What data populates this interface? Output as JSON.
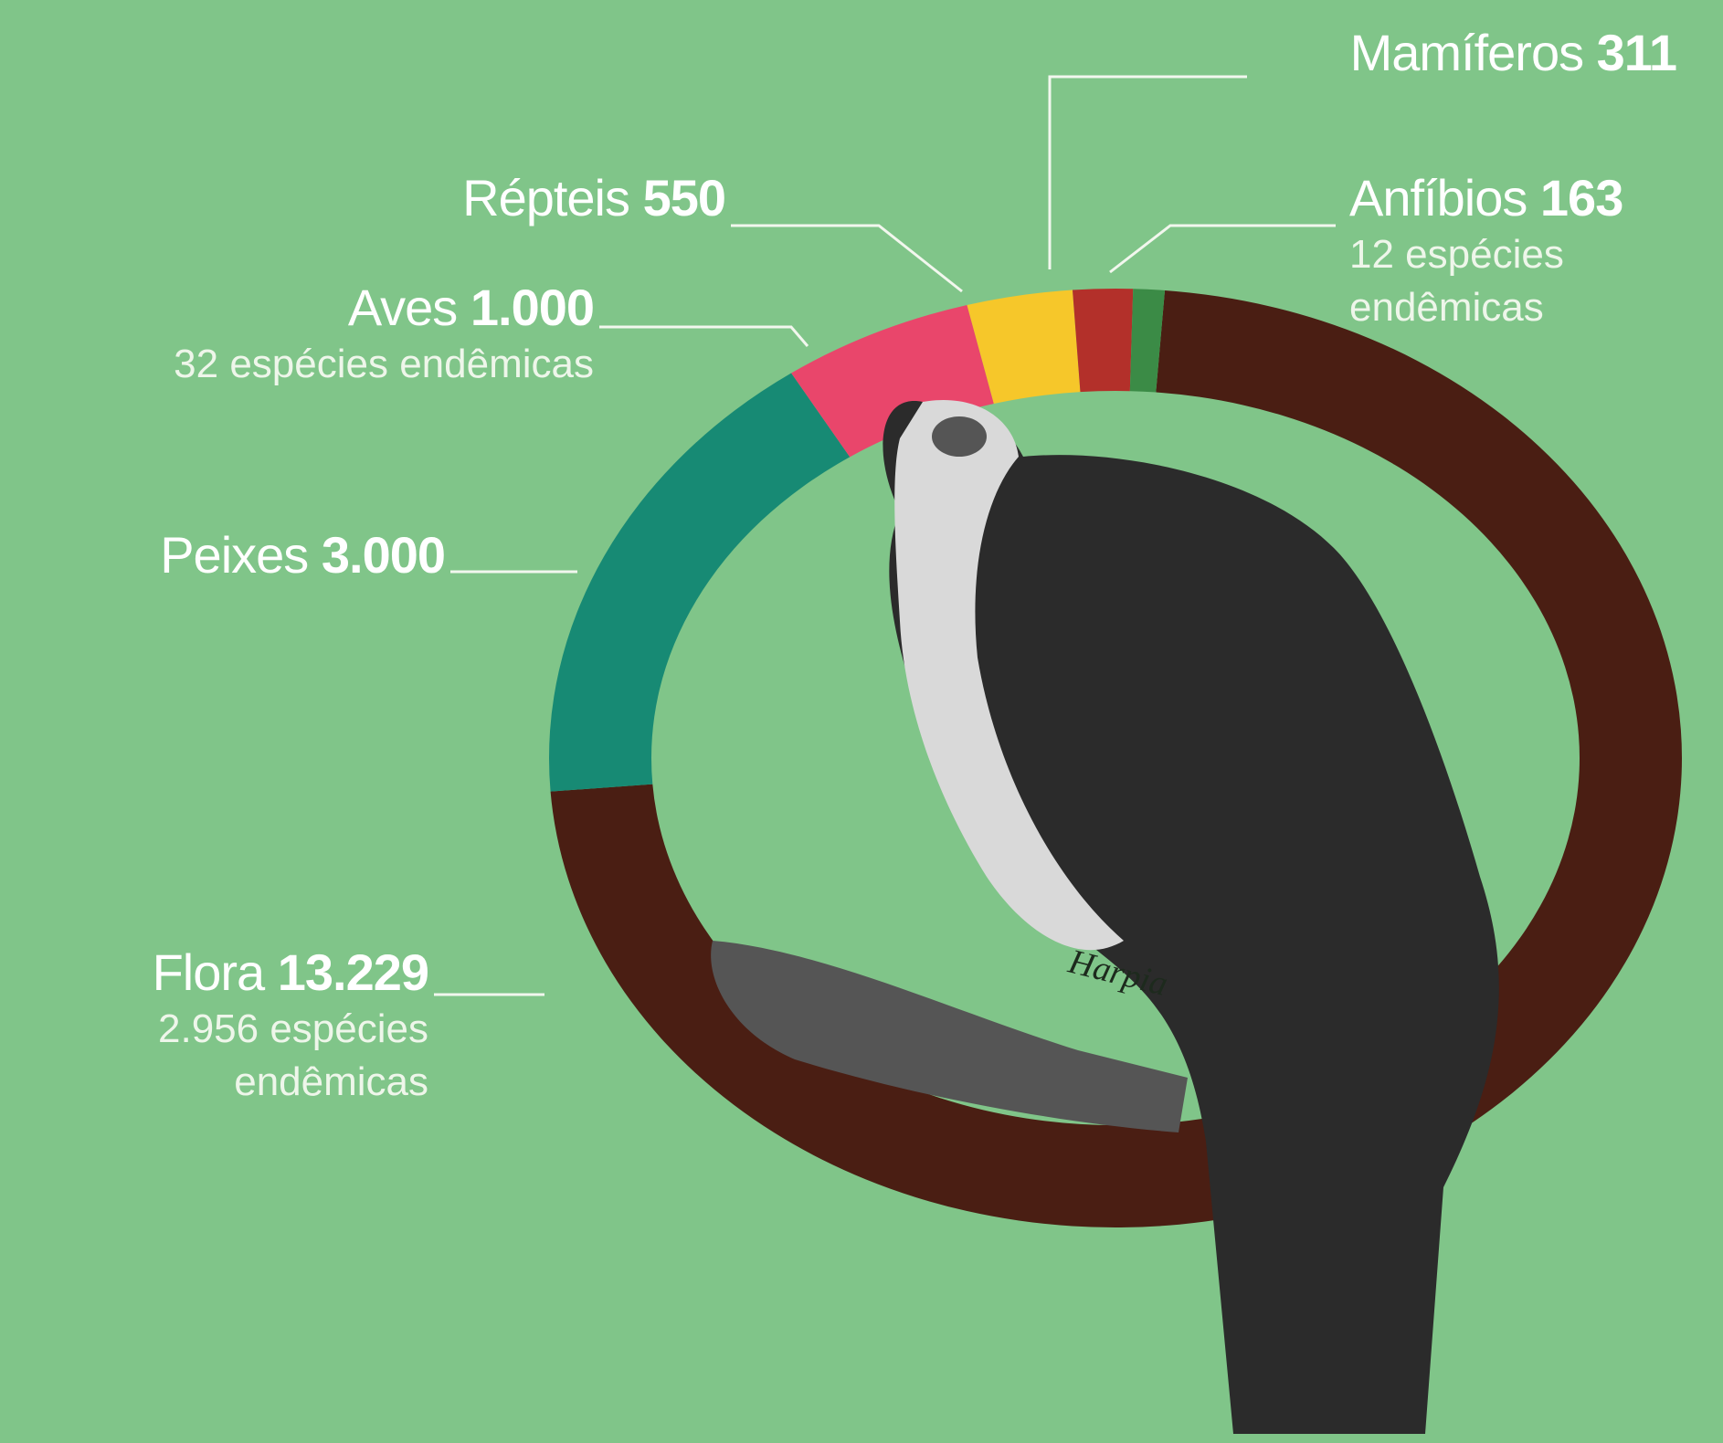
{
  "chart_data": {
    "type": "pie",
    "categories": [
      "Flora",
      "Peixes",
      "Aves",
      "Répteis",
      "Mamíferos",
      "Anfíbios"
    ],
    "values": [
      13229,
      3000,
      1000,
      550,
      311,
      163
    ],
    "value_labels": [
      "13.229",
      "3.000",
      "1.000",
      "550",
      "311",
      "163"
    ],
    "notes": [
      "2.956 espécies endêmicas",
      null,
      "32 espécies endêmicas",
      null,
      null,
      "12 espécies endêmicas"
    ],
    "colors": [
      "#4a1e13",
      "#178a74",
      "#e9466b",
      "#f6c72a",
      "#b3302a",
      "#3b8b46"
    ],
    "image_caption": "Harpia"
  }
}
